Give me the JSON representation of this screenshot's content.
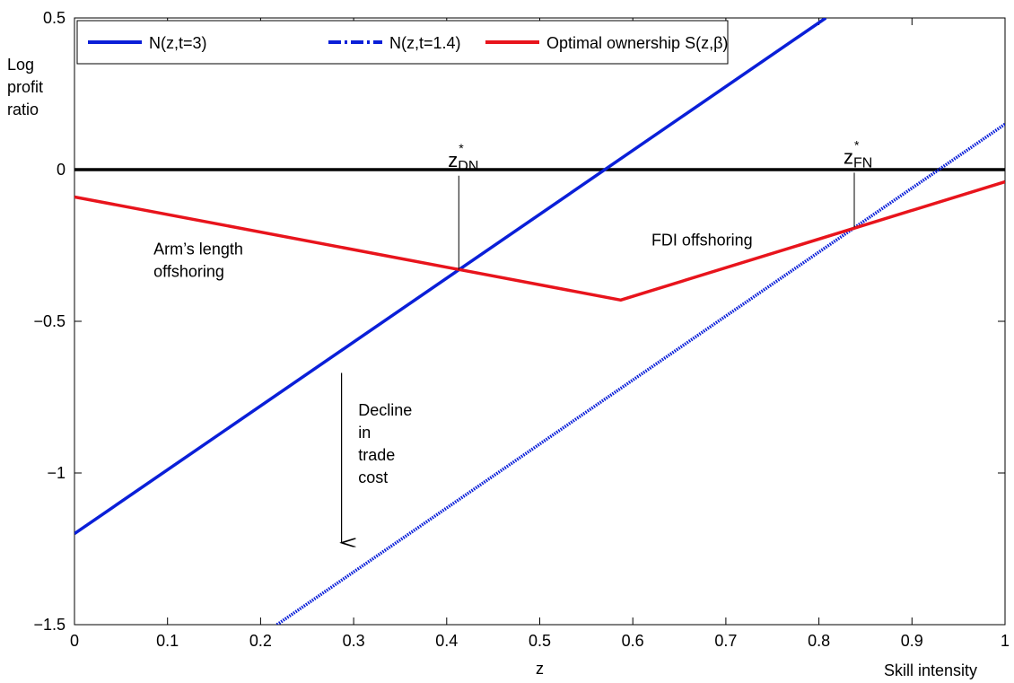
{
  "chart_data": {
    "type": "line",
    "xlabel": "z",
    "xlabel_secondary": "Skill intensity",
    "ylabel_lines": [
      "Log",
      "profit",
      "ratio"
    ],
    "xlim": [
      0,
      1
    ],
    "ylim": [
      -1.5,
      0.5
    ],
    "x_ticks": [
      0,
      0.1,
      0.2,
      0.3,
      0.4,
      0.5,
      0.6,
      0.7,
      0.8,
      0.9,
      1
    ],
    "x_tick_labels": [
      "0",
      "0.1",
      "0.2",
      "0.3",
      "0.4",
      "0.5",
      "0.6",
      "0.7",
      "0.8",
      "0.9",
      "1"
    ],
    "y_ticks": [
      -1.5,
      -1,
      -0.5,
      0,
      0.5
    ],
    "y_tick_labels": [
      "−1.5",
      "−1",
      "−0.5",
      "0",
      "0.5"
    ],
    "grid": false,
    "legend_position": "top-left",
    "series": [
      {
        "name": "N(z,t=3)",
        "style": "solid",
        "color": "#0a1fd8",
        "x": [
          0,
          0.8074
        ],
        "y": [
          -1.2,
          0.5
        ]
      },
      {
        "name": "N(z,t=1.4)",
        "style": "dash-dot",
        "color": "#0a1fd8",
        "x": [
          0.2176,
          1
        ],
        "y": [
          -1.5,
          0.15
        ]
      },
      {
        "name": "Optimal ownership S(z,β)",
        "style": "solid",
        "color": "#e8141c",
        "x": [
          0,
          0.587,
          1
        ],
        "y": [
          -0.09,
          -0.43,
          -0.04
        ]
      }
    ],
    "reference_lines": [
      {
        "y": 0,
        "color": "#000000"
      }
    ],
    "markers": [
      {
        "label": "z",
        "sup": "*",
        "sub": "DN",
        "x": 0.413,
        "y_from": -0.33,
        "y_to": -0.02
      },
      {
        "label": "z",
        "sup": "*",
        "sub": "FN",
        "x": 0.838,
        "y_from": -0.19,
        "y_to": -0.01
      }
    ],
    "annotations": [
      {
        "lines": [
          "Arm’s length",
          "offshoring"
        ],
        "x": 0.085,
        "y": -0.28
      },
      {
        "lines": [
          "FDI offshoring"
        ],
        "x": 0.62,
        "y": -0.25
      },
      {
        "lines": [
          "Decline",
          "in",
          "trade",
          "cost"
        ],
        "x": 0.305,
        "y": -0.81
      }
    ],
    "arrow": {
      "x": 0.287,
      "y_from": -0.67,
      "y_to": -1.23
    }
  }
}
